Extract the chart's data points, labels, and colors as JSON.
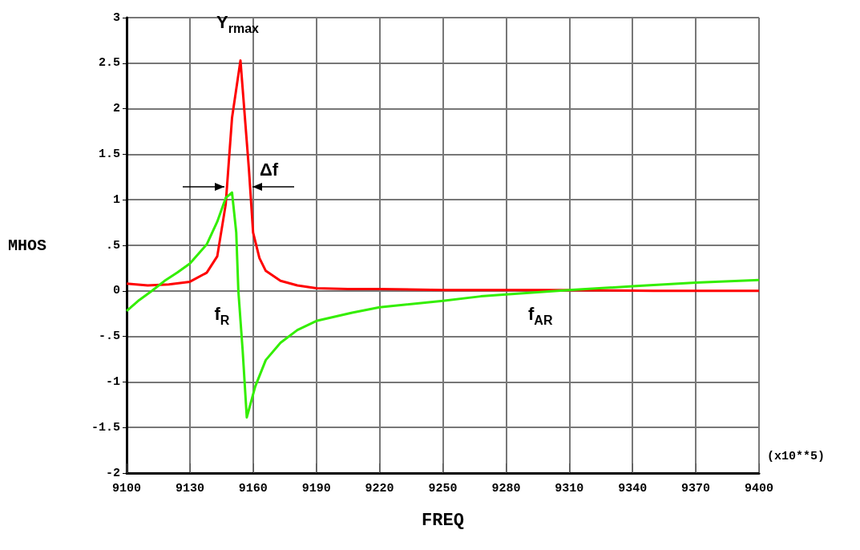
{
  "chart_data": {
    "type": "line",
    "xlabel": "FREQ",
    "ylabel": "MHOS",
    "xlim": [
      9100,
      9400
    ],
    "xticks": [
      9100,
      9130,
      9160,
      9190,
      9220,
      9250,
      9280,
      9310,
      9340,
      9370,
      9400
    ],
    "ylim": [
      -2,
      3
    ],
    "yticks": [
      {
        "value": -2,
        "label": "-2"
      },
      {
        "value": -1.5,
        "label": "-1.5"
      },
      {
        "value": -1,
        "label": "-1"
      },
      {
        "value": -0.5,
        "label": "-.5"
      },
      {
        "value": 0,
        "label": "0"
      },
      {
        "value": 0.5,
        "label": ".5"
      },
      {
        "value": 1,
        "label": "1"
      },
      {
        "value": 1.5,
        "label": "1.5"
      },
      {
        "value": 2,
        "label": "2"
      },
      {
        "value": 2.5,
        "label": "2.5"
      },
      {
        "value": 3,
        "label": "3"
      }
    ],
    "grid": true,
    "marker": "none",
    "line_style": "solid",
    "series": [
      {
        "color": "#ff0000",
        "x": [
          9100,
          9110,
          9120,
          9130,
          9138,
          9143,
          9147,
          9150,
          9154,
          9158,
          9160,
          9163,
          9166,
          9173,
          9181,
          9190,
          9205,
          9220,
          9250,
          9300,
          9350,
          9400
        ],
        "values": [
          0.08,
          0.06,
          0.07,
          0.1,
          0.2,
          0.38,
          0.95,
          1.9,
          2.53,
          1.34,
          0.64,
          0.36,
          0.22,
          0.11,
          0.06,
          0.03,
          0.02,
          0.02,
          0.01,
          0.01,
          0.0,
          0.0
        ]
      },
      {
        "color": "#33ee00",
        "x": [
          9100,
          9106,
          9112,
          9118,
          9124,
          9130,
          9138,
          9143,
          9147,
          9150,
          9152,
          9153,
          9155,
          9157,
          9161,
          9166,
          9173,
          9181,
          9190,
          9207,
          9220,
          9250,
          9268,
          9280,
          9310,
          9340,
          9370,
          9400
        ],
        "values": [
          -0.22,
          -0.1,
          0.0,
          0.11,
          0.2,
          0.3,
          0.51,
          0.76,
          1.02,
          1.08,
          0.64,
          0.0,
          -0.64,
          -1.39,
          -1.05,
          -0.76,
          -0.57,
          -0.43,
          -0.33,
          -0.24,
          -0.18,
          -0.11,
          -0.06,
          -0.04,
          0.01,
          0.05,
          0.09,
          0.12
        ]
      }
    ],
    "annotations": [
      {
        "text": "Y$_{rmax}$",
        "x": 9154,
        "y": 2.53
      },
      "Δf",
      {
        "text": "f$_{R}$",
        "x": 9153,
        "y": 0
      },
      {
        "text": "f$_{AR}$",
        "x": 9300,
        "y": 0
      },
      "(x10**5)"
    ]
  }
}
